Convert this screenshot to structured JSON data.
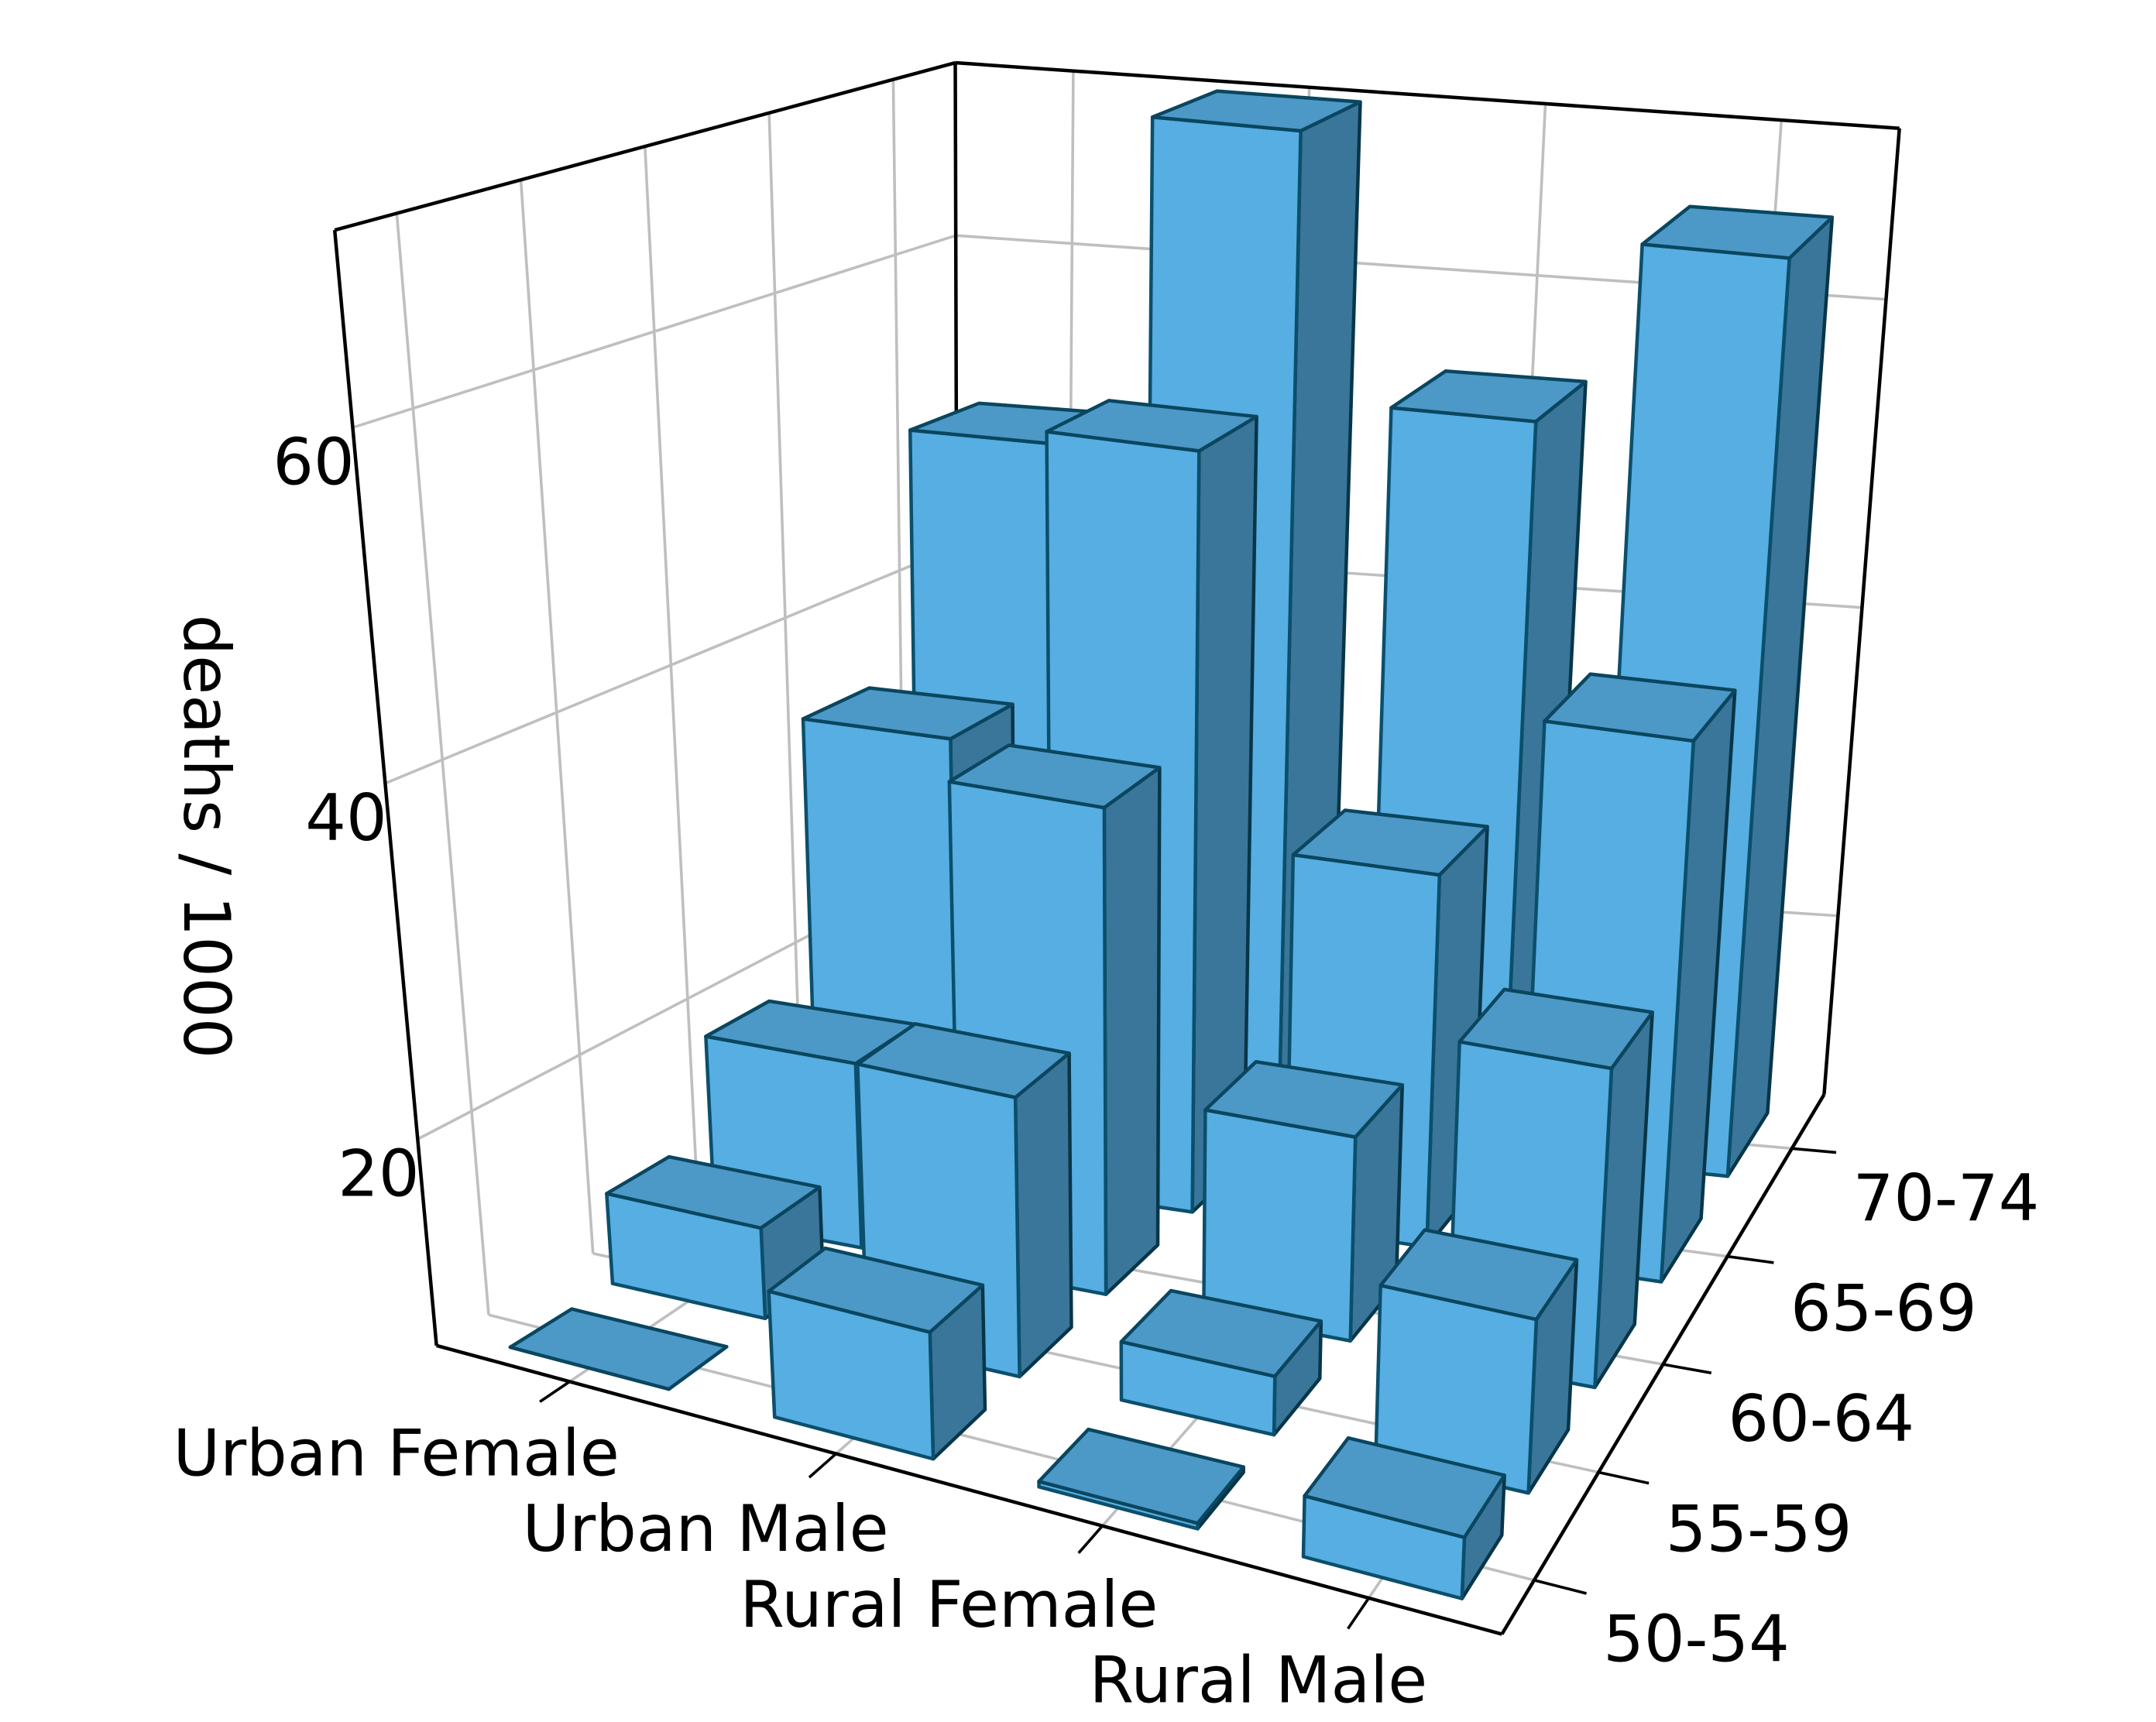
{
  "chart_data": {
    "type": "bar3d",
    "zlabel": "deaths / 1000",
    "categories": [
      "Urban Female",
      "Urban Male",
      "Rural Female",
      "Rural Male"
    ],
    "ycategories": [
      "50-54",
      "55-59",
      "60-64",
      "65-69",
      "70-74"
    ],
    "values": [
      [
        8.4,
        13.6,
        19.3,
        35.1,
        50.0
      ],
      [
        15.4,
        24.3,
        37.0,
        54.6,
        71.1
      ],
      [
        8.7,
        11.7,
        20.3,
        30.9,
        54.3
      ],
      [
        11.7,
        18.1,
        26.9,
        41.0,
        66.0
      ]
    ],
    "color": "#56aee2",
    "edge_color": "#0b4f6c",
    "zlim": [
      8.4,
      71.1
    ],
    "zticks": [
      20,
      40,
      60
    ],
    "grid": true
  }
}
